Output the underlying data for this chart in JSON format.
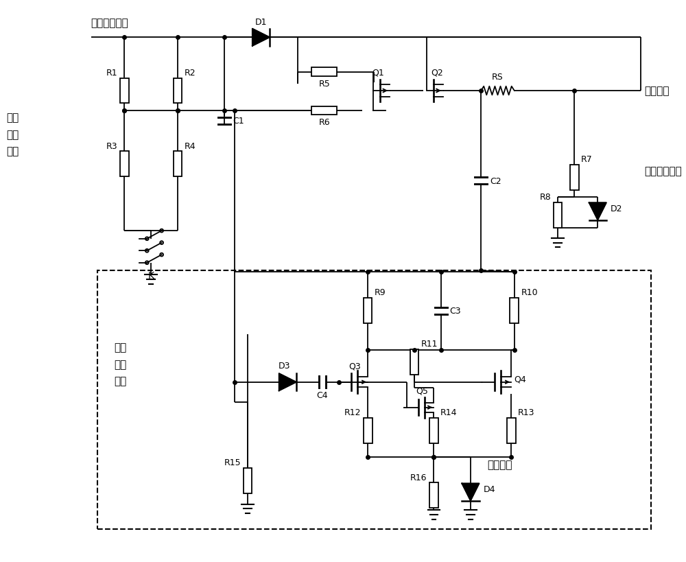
{
  "bg_color": "#ffffff",
  "line_color": "#000000",
  "lw": 1.3,
  "labels": {
    "top_input": "高压母线输入",
    "left_block": "功率\n驱动\n电路",
    "output": "配电输出",
    "supply_telemetry": "供电状态遥测",
    "current_sampling": "电流\n采集\n电路",
    "current_telemetry": "电流遥测"
  },
  "font_size_label": 11,
  "font_size_comp": 9
}
